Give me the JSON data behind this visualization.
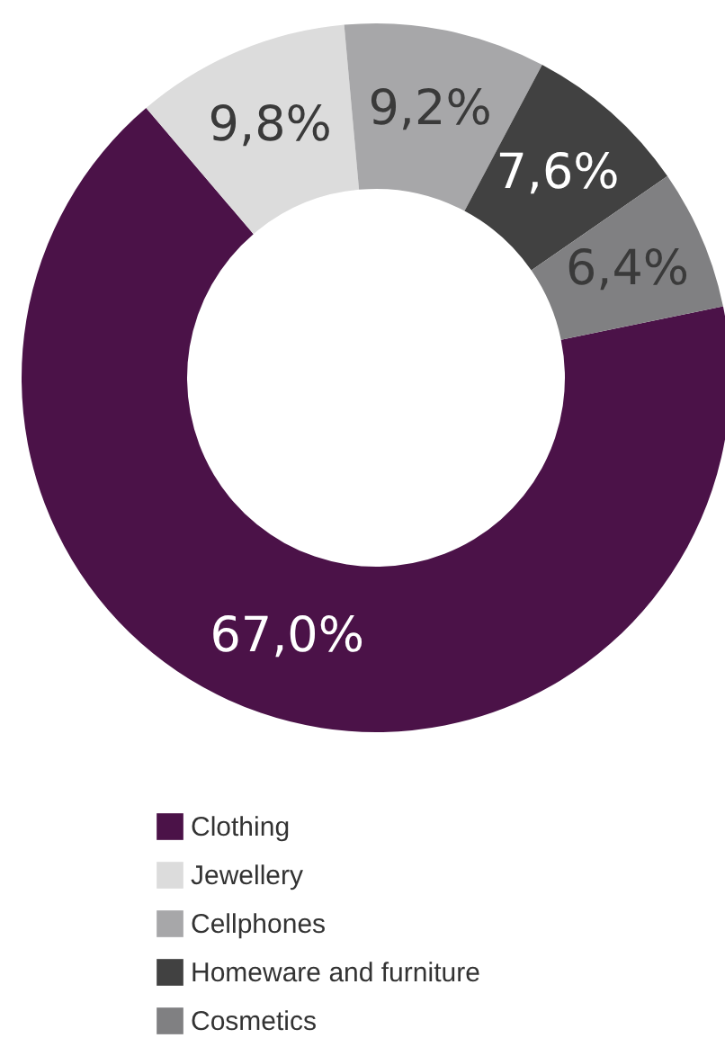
{
  "chart_data": {
    "type": "donut",
    "categories": [
      "Clothing",
      "Jewellery",
      "Cellphones",
      "Homeware and furniture",
      "Cosmetics"
    ],
    "values": [
      67.0,
      9.8,
      9.2,
      7.6,
      6.4
    ],
    "value_labels": [
      "67,0%",
      "9,8%",
      "9,2%",
      "7,6%",
      "6,4%"
    ],
    "colors": [
      "#4b1248",
      "#dcdcdc",
      "#a7a7a9",
      "#414141",
      "#808082"
    ],
    "legend": "bottom left"
  }
}
